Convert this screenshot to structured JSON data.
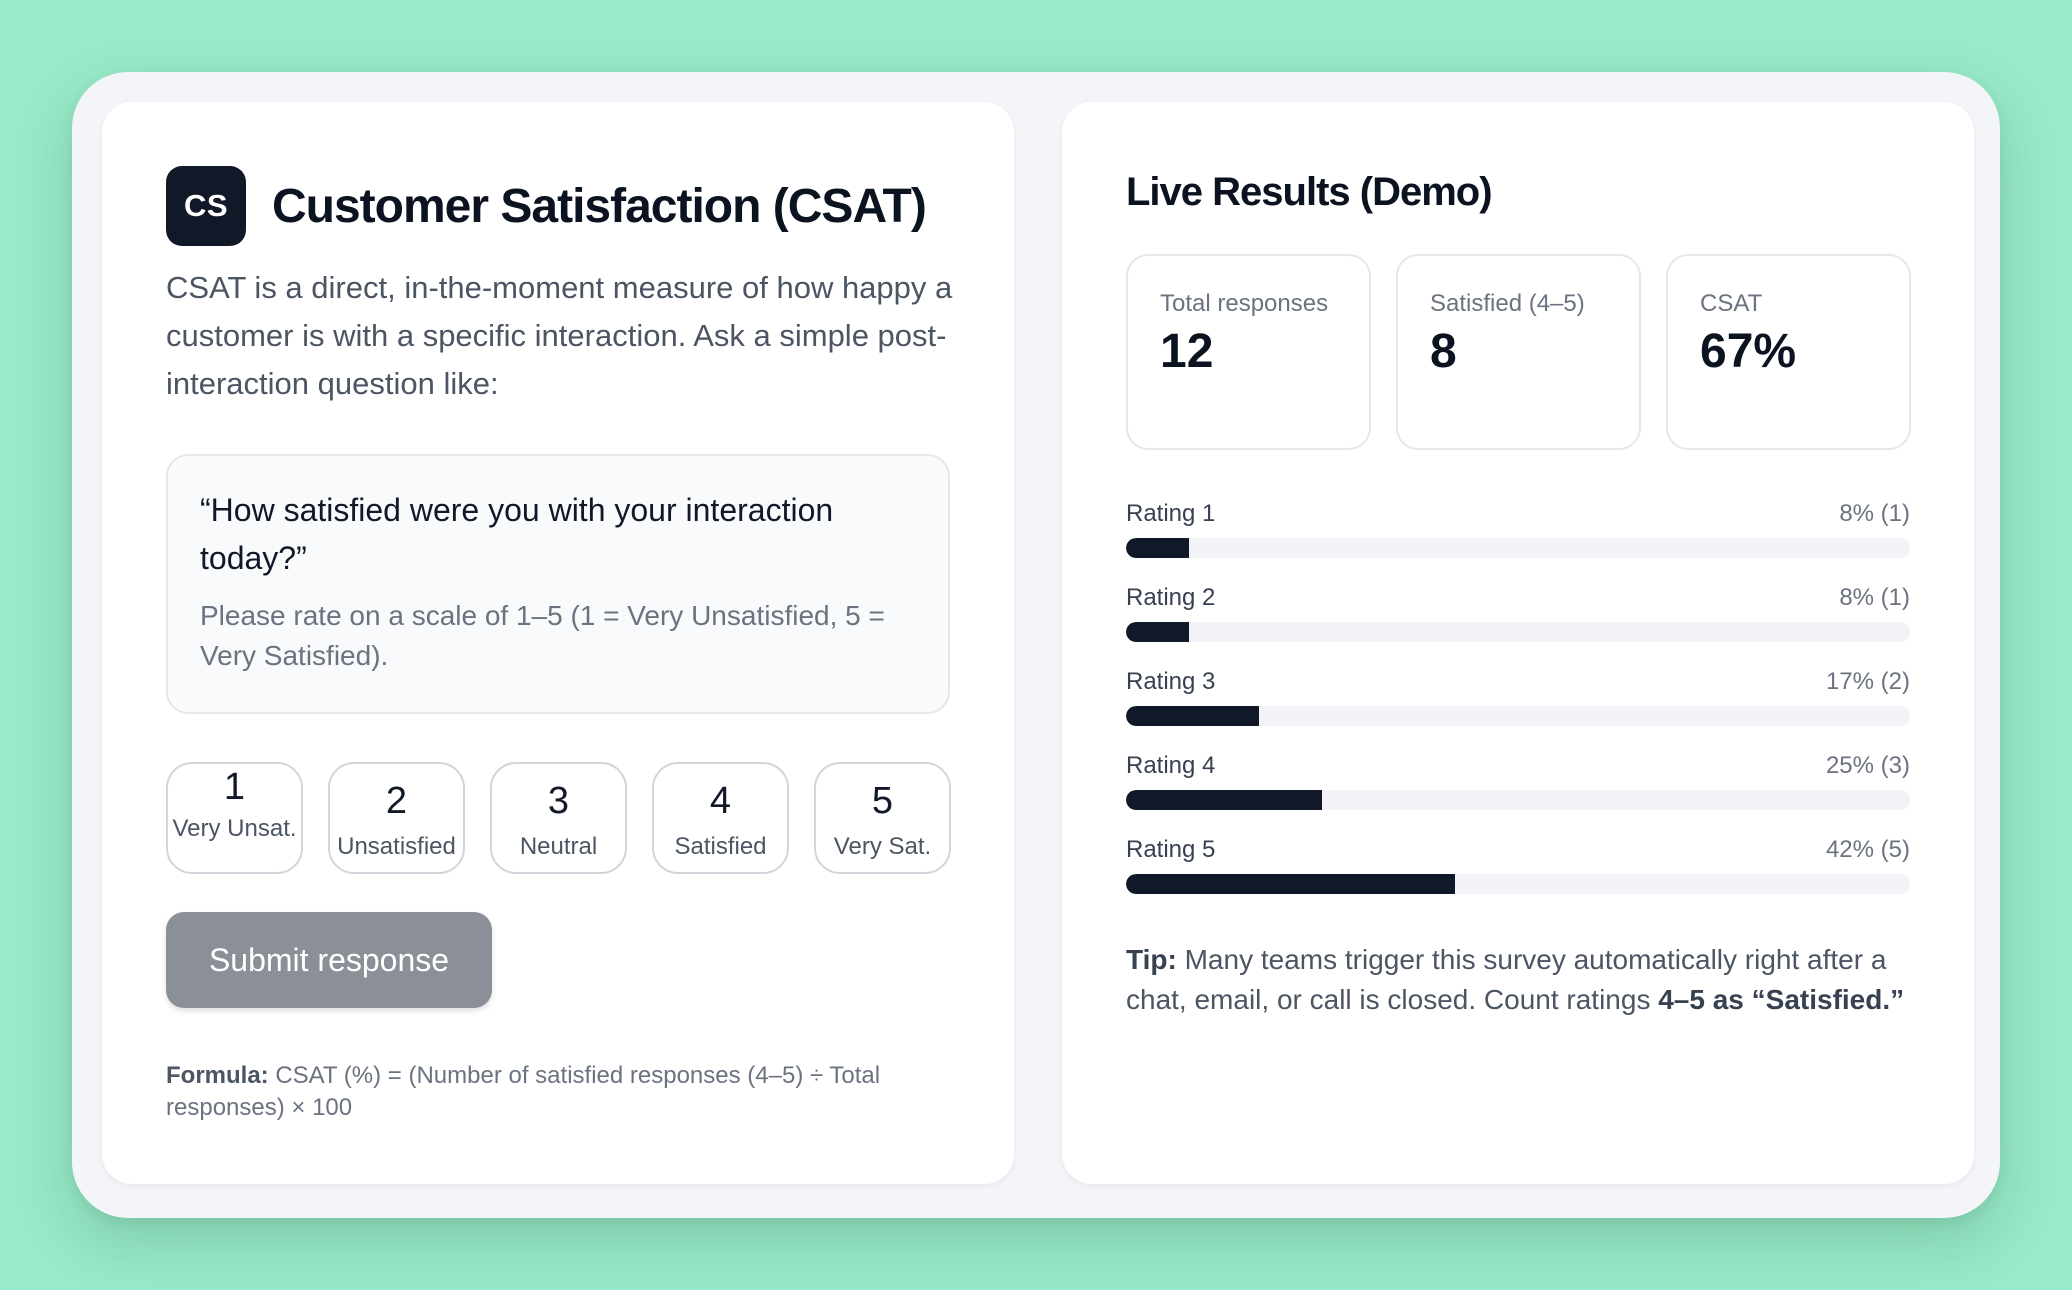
{
  "survey": {
    "logo_text": "CS",
    "title": "Customer Satisfaction (CSAT)",
    "intro": "CSAT is a direct, in-the-moment measure of how happy a customer is with a specific interaction. Ask a simple post-interaction question like:",
    "question": "“How satisfied were you with your interaction today?”",
    "hint": "Please rate on a scale of 1–5 (1 = Very Unsatisfied, 5 = Very Satisfied).",
    "ratings": [
      {
        "value": "1",
        "label": "Very Unsat."
      },
      {
        "value": "2",
        "label": "Unsatisfied"
      },
      {
        "value": "3",
        "label": "Neutral"
      },
      {
        "value": "4",
        "label": "Satisfied"
      },
      {
        "value": "5",
        "label": "Very Sat."
      }
    ],
    "submit_label": "Submit response",
    "formula_label": "Formula:",
    "formula_text": "CSAT (%) = (Number of satisfied responses (4–5) ÷ Total responses) × 100"
  },
  "results": {
    "title": "Live Results (Demo)",
    "stats": [
      {
        "label": "Total responses",
        "value": "12"
      },
      {
        "label": "Satisfied (4–5)",
        "value": "8"
      },
      {
        "label": "CSAT",
        "value": "67%"
      }
    ],
    "distribution": [
      {
        "label": "Rating 1",
        "summary": "8% (1)",
        "fraction": 0.08
      },
      {
        "label": "Rating 2",
        "summary": "8% (1)",
        "fraction": 0.08
      },
      {
        "label": "Rating 3",
        "summary": "17% (2)",
        "fraction": 0.17
      },
      {
        "label": "Rating 4",
        "summary": "25% (3)",
        "fraction": 0.25
      },
      {
        "label": "Rating 5",
        "summary": "42% (5)",
        "fraction": 0.42
      }
    ],
    "tip_label": "Tip:",
    "tip_text": "Many teams trigger this survey automatically right after a chat, email, or call is closed. Count ratings",
    "tip_emphasis": "4–5 as “Satisfied.”"
  },
  "colors": {
    "background": "#98eac8",
    "accent": "#111827",
    "submit_disabled": "#8b9098"
  }
}
